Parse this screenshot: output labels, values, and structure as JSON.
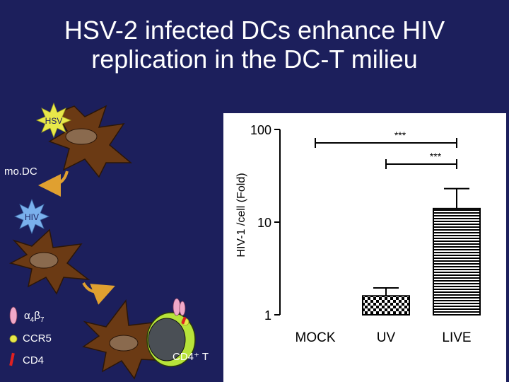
{
  "slide": {
    "title_line1": "HSV-2 infected DCs enhance HIV",
    "title_line2": "replication in the DC-T milieu"
  },
  "diagram": {
    "hsv_label": "HSV",
    "hiv_label": "HIV",
    "modc_label": "mo.DC",
    "cd4t_label": "CD4⁺ T",
    "legend": [
      {
        "symbol": "α4β7-receptor-icon",
        "alpha": "α",
        "alpha_sub": "4",
        "beta": "β",
        "beta_sub": "7"
      },
      {
        "symbol": "ccr5-receptor-icon",
        "label": "CCR5"
      },
      {
        "symbol": "cd4-receptor-icon",
        "label": "CD4"
      }
    ]
  },
  "colors": {
    "background": "#1c1f5c",
    "cell_brown": "#6b3a14",
    "nucleus": "#8a6a4e",
    "virus_yellow": "#e8e84a",
    "hiv_blue": "#7ab0ec",
    "tcell_green": "#b7e33a",
    "arrow": "#e0a030"
  },
  "chart_data": {
    "type": "bar",
    "ylabel": "HIV-1 /cell (Fold)",
    "yscale": "log",
    "ylim": [
      1,
      100
    ],
    "yticks": [
      {
        "value": 1,
        "label": "1"
      },
      {
        "value": 10,
        "label": "10"
      },
      {
        "value": 100,
        "label": "100"
      }
    ],
    "categories": [
      "MOCK",
      "UV",
      "LIVE"
    ],
    "values": [
      1,
      1.6,
      14
    ],
    "errors": [
      0,
      0.35,
      9
    ],
    "patterns": [
      "none",
      "checker",
      "hlines"
    ],
    "significance": [
      {
        "from": 0,
        "to": 2,
        "label": "***"
      },
      {
        "from": 1,
        "to": 2,
        "label": "***"
      }
    ]
  }
}
